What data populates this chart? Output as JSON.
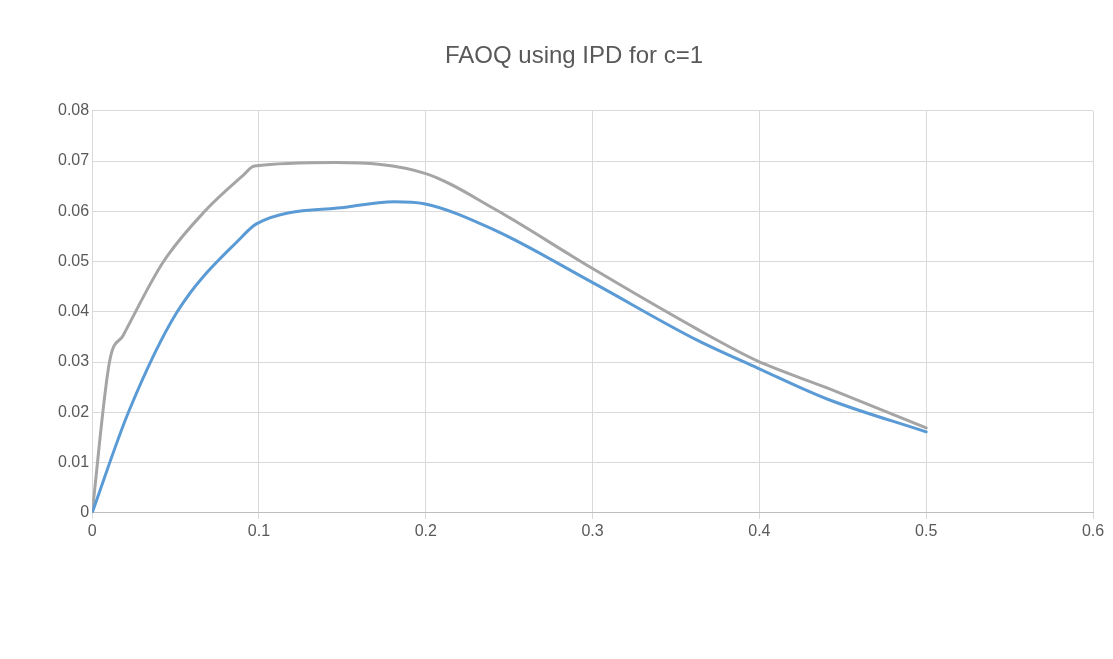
{
  "chart_data": {
    "type": "line",
    "title": "FAOQ using IPD for c=1",
    "xlim": [
      0,
      0.6
    ],
    "xticks": [
      0,
      0.1,
      0.2,
      0.3,
      0.4,
      0.5,
      0.6
    ],
    "ylim": [
      0,
      0.08
    ],
    "yticks": [
      0,
      0.01,
      0.02,
      0.03,
      0.04,
      0.05,
      0.06,
      0.07,
      0.08
    ],
    "grid": true,
    "legend": false,
    "marker": "none",
    "line_style": "solid",
    "series": [
      {
        "color": "#5b9bd5",
        "x": [
          0,
          0.022,
          0.051,
          0.09,
          0.0985,
          0.154,
          0.181,
          0.199,
          0.241,
          0.299,
          0.363,
          0.399,
          0.441,
          0.5
        ],
        "values": [
          0,
          0.0202,
          0.04,
          0.055,
          0.0575,
          0.0609,
          0.0619,
          0.0615,
          0.0563,
          0.046,
          0.0343,
          0.0288,
          0.0226,
          0.0161
        ]
      },
      {
        "color": "#a5a5a5",
        "x": [
          0,
          0.0105,
          0.0186,
          0.0428,
          0.0675,
          0.09,
          0.0973,
          0.146,
          0.2,
          0.241,
          0.299,
          0.363,
          0.399,
          0.441,
          0.5
        ],
        "values": [
          0,
          0.0302,
          0.0353,
          0.05,
          0.06,
          0.067,
          0.069,
          0.0697,
          0.0675,
          0.0605,
          0.0488,
          0.0365,
          0.0302,
          0.0248,
          0.0169
        ]
      }
    ]
  }
}
